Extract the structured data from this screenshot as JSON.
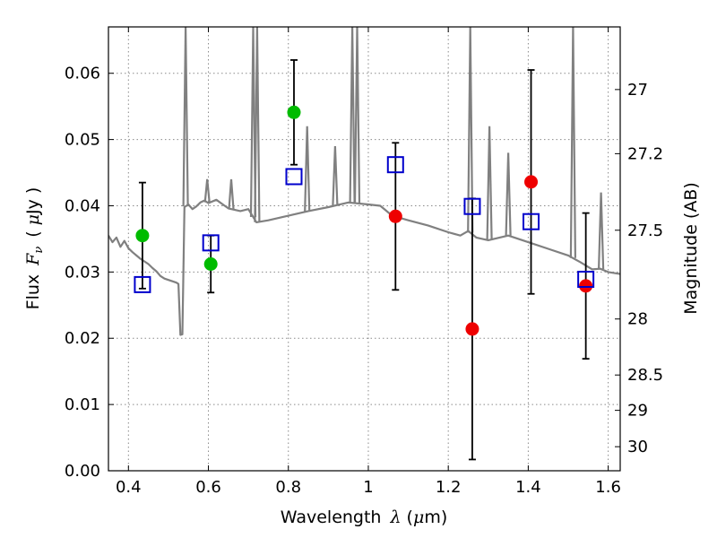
{
  "chart_data": {
    "type": "scatter",
    "title": "",
    "xlabel": "Wavelength",
    "xlabel_symbol": "λ",
    "xlabel_unit_open": "(",
    "xlabel_unit_mu": "μ",
    "xlabel_unit_rest": "m)",
    "ylabel": "Flux",
    "ylabel_symbol": "F",
    "ylabel_sub": "ν",
    "ylabel_unit_open": "(",
    "ylabel_unit_mu": "μ",
    "ylabel_unit_rest": "Jy )",
    "y2label": "Magnitude (AB)",
    "xlim": [
      0.35,
      1.63
    ],
    "ylim": [
      0.0,
      0.067
    ],
    "grid": true,
    "x_ticks": [
      0.4,
      0.6,
      0.8,
      1.0,
      1.2,
      1.4,
      1.6
    ],
    "x_tick_labels": [
      "0.4",
      "0.6",
      "0.8",
      "1",
      "1.2",
      "1.4",
      "1.6"
    ],
    "y_ticks": [
      0.0,
      0.01,
      0.02,
      0.03,
      0.04,
      0.05,
      0.06
    ],
    "y_tick_labels": [
      "0.00",
      "0.01",
      "0.02",
      "0.03",
      "0.04",
      "0.05",
      "0.06"
    ],
    "y2_ticks": [
      27,
      27.2,
      27.5,
      28,
      28.5,
      29,
      30
    ],
    "y2_tick_labels": [
      "27",
      "27.2",
      "27.5",
      "28",
      "28.5",
      "29",
      "30"
    ],
    "colors": {
      "model": "#808080",
      "green": "#00bb00",
      "red": "#ee0000",
      "blue": "#0000cc",
      "errorbar": "#000000",
      "grid": "#8a8a8a"
    },
    "model_spectrum": {
      "x": [
        0.35,
        0.36,
        0.37,
        0.38,
        0.39,
        0.4,
        0.41,
        0.42,
        0.43,
        0.44,
        0.45,
        0.46,
        0.47,
        0.48,
        0.49,
        0.5,
        0.51,
        0.52,
        0.525,
        0.53,
        0.535,
        0.54,
        0.55,
        0.56,
        0.57,
        0.58,
        0.59,
        0.6,
        0.62,
        0.65,
        0.68,
        0.7,
        0.72,
        0.75,
        0.8,
        0.85,
        0.9,
        0.95,
        1.0,
        1.03,
        1.06,
        1.1,
        1.15,
        1.2,
        1.23,
        1.25,
        1.27,
        1.3,
        1.35,
        1.4,
        1.45,
        1.5,
        1.53,
        1.56,
        1.58,
        1.6,
        1.63
      ],
      "y": [
        0.0355,
        0.0345,
        0.0352,
        0.0338,
        0.0347,
        0.0336,
        0.033,
        0.0325,
        0.032,
        0.0316,
        0.0312,
        0.0306,
        0.0301,
        0.0294,
        0.029,
        0.0288,
        0.0286,
        0.0284,
        0.0282,
        0.0205,
        0.0206,
        0.0398,
        0.0402,
        0.0395,
        0.0399,
        0.0405,
        0.0408,
        0.0404,
        0.0409,
        0.0396,
        0.0392,
        0.0395,
        0.0375,
        0.0378,
        0.0385,
        0.0392,
        0.0398,
        0.0405,
        0.0402,
        0.04,
        0.0385,
        0.0378,
        0.037,
        0.036,
        0.0355,
        0.0362,
        0.0352,
        0.0348,
        0.0355,
        0.0345,
        0.0335,
        0.0325,
        0.0315,
        0.0304,
        0.0305,
        0.03,
        0.0297
      ]
    },
    "model_lines": [
      {
        "x": 0.543,
        "peak": 0.067
      },
      {
        "x": 0.597,
        "peak": 0.044
      },
      {
        "x": 0.657,
        "peak": 0.044
      },
      {
        "x": 0.712,
        "peak": 0.067
      },
      {
        "x": 0.722,
        "peak": 0.067
      },
      {
        "x": 0.847,
        "peak": 0.052
      },
      {
        "x": 0.917,
        "peak": 0.049
      },
      {
        "x": 0.96,
        "peak": 0.067
      },
      {
        "x": 0.972,
        "peak": 0.067
      },
      {
        "x": 1.255,
        "peak": 0.067
      },
      {
        "x": 1.303,
        "peak": 0.052
      },
      {
        "x": 1.35,
        "peak": 0.048
      },
      {
        "x": 1.512,
        "peak": 0.067
      },
      {
        "x": 1.582,
        "peak": 0.042
      }
    ],
    "series": [
      {
        "marker": "circle",
        "color": "green",
        "points": [
          {
            "x": 0.435,
            "y": 0.0355,
            "err": 0.008
          },
          {
            "x": 0.606,
            "y": 0.0312,
            "err": 0.0043
          },
          {
            "x": 0.814,
            "y": 0.0541,
            "err": 0.0079
          }
        ]
      },
      {
        "marker": "circle",
        "color": "red",
        "points": [
          {
            "x": 1.068,
            "y": 0.0384,
            "err": 0.0111
          },
          {
            "x": 1.26,
            "y": 0.0214,
            "err": 0.0197
          },
          {
            "x": 1.407,
            "y": 0.0436,
            "err": 0.0169
          },
          {
            "x": 1.544,
            "y": 0.0279,
            "err": 0.011
          }
        ]
      },
      {
        "marker": "open-square",
        "color": "blue",
        "points": [
          {
            "x": 0.435,
            "y": 0.0281
          },
          {
            "x": 0.606,
            "y": 0.0344
          },
          {
            "x": 0.814,
            "y": 0.0444
          },
          {
            "x": 1.068,
            "y": 0.0462
          },
          {
            "x": 1.26,
            "y": 0.0399
          },
          {
            "x": 1.407,
            "y": 0.0376
          },
          {
            "x": 1.544,
            "y": 0.0289
          }
        ]
      }
    ]
  }
}
